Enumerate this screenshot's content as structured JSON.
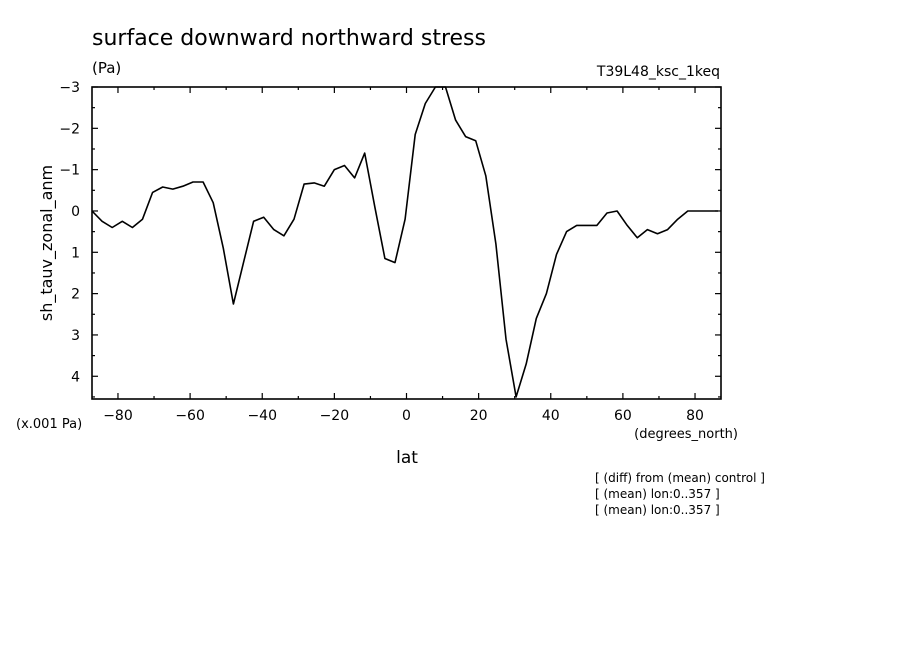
{
  "chart_data": {
    "type": "line",
    "title": "surface downward northward stress",
    "units_label": "(Pa)",
    "run_label": "T39L48_ksc_1keq",
    "ylabel": "sh_tauv_zonal_anm",
    "y_scale_label": "(x.001 Pa)",
    "xlabel": "lat",
    "x_units_label": "(degrees_north)",
    "notes": [
      "[ (diff) from (mean) control ]",
      "[ (mean) lon:0..357 ]",
      "[ (mean) lon:0..357 ]"
    ],
    "xlim": [
      -87.2,
      87.2
    ],
    "ylim": [
      4.55,
      -3.0
    ],
    "y_inverted": true,
    "x_ticks": [
      -80,
      -60,
      -40,
      -20,
      0,
      20,
      40,
      60,
      80
    ],
    "x_tick_labels": [
      "−80",
      "−60",
      "−40",
      "−20",
      "0",
      "20",
      "40",
      "60",
      "80"
    ],
    "y_ticks": [
      -3,
      -2,
      -1,
      0,
      1,
      2,
      3,
      4
    ],
    "y_tick_labels": [
      "−3",
      "−2",
      "−1",
      "0",
      "1",
      "2",
      "3",
      "4"
    ],
    "series": [
      {
        "x": [
          -87.2,
          -84.4,
          -81.6,
          -78.8,
          -76.0,
          -73.2,
          -70.4,
          -67.6,
          -64.8,
          -62.0,
          -59.2,
          -56.4,
          -53.6,
          -50.8,
          -48.0,
          -45.2,
          -42.4,
          -39.6,
          -36.8,
          -34.0,
          -31.2,
          -28.4,
          -25.6,
          -22.8,
          -20.0,
          -17.2,
          -14.4,
          -11.6,
          -8.8,
          -6.0,
          -3.2,
          -0.4,
          2.4,
          5.2,
          8.0,
          10.8,
          13.6,
          16.4,
          19.2,
          22.0,
          24.8,
          27.6,
          30.4,
          33.2,
          36.0,
          38.8,
          41.6,
          44.4,
          47.2,
          50.0,
          52.8,
          55.6,
          58.4,
          61.2,
          64.0,
          66.8,
          69.6,
          72.4,
          75.2,
          78.0,
          80.8,
          83.6,
          86.4
        ],
        "y": [
          0.0,
          0.25,
          0.4,
          0.25,
          0.4,
          0.2,
          -0.45,
          -0.58,
          -0.53,
          -0.6,
          -0.7,
          -0.7,
          -0.2,
          0.9,
          2.25,
          1.25,
          0.25,
          0.15,
          0.45,
          0.6,
          0.2,
          -0.65,
          -0.68,
          -0.6,
          -1.0,
          -1.1,
          -0.8,
          -1.4,
          -0.1,
          1.15,
          1.25,
          0.2,
          -1.85,
          -2.6,
          -3.0,
          -3.0,
          -2.2,
          -1.8,
          -1.7,
          -0.85,
          0.8,
          3.1,
          4.5,
          3.7,
          2.6,
          2.0,
          1.05,
          0.5,
          0.35,
          0.35,
          0.35,
          0.05,
          0.0,
          0.35,
          0.65,
          0.45,
          0.55,
          0.45,
          0.2,
          0.0,
          0.0,
          0.0,
          0.0
        ]
      }
    ]
  }
}
